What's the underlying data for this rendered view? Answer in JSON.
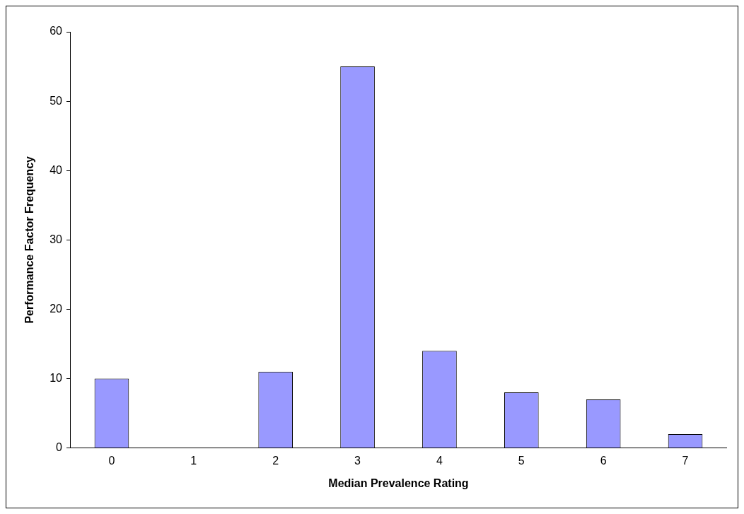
{
  "chart_data": {
    "type": "bar",
    "xlabel": "Median Prevalence Rating",
    "ylabel": "Performance Factor Frequency",
    "categories": [
      "0",
      "1",
      "2",
      "3",
      "4",
      "5",
      "6",
      "7"
    ],
    "values": [
      10,
      0,
      11,
      55,
      14,
      8,
      7,
      2
    ],
    "color": "#9999ff",
    "ylim": [
      0,
      60
    ],
    "yticks": [
      0,
      10,
      20,
      30,
      40,
      50,
      60
    ],
    "grid": false,
    "legend": false
  }
}
